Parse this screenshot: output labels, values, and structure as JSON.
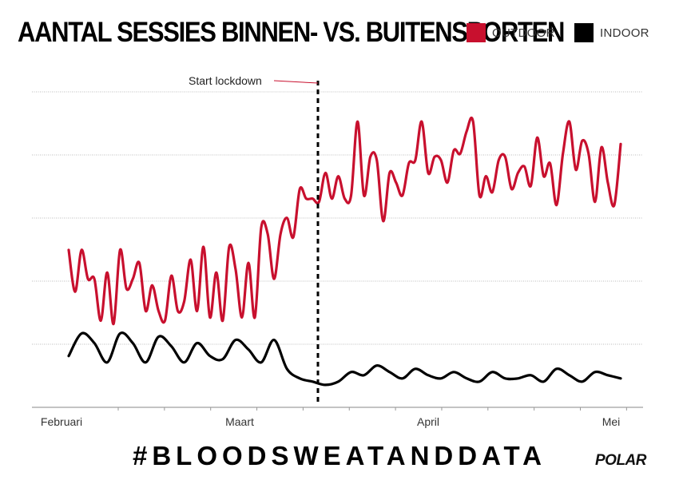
{
  "title": "AANTAL SESSIES BINNEN- VS. BUITENSPORTEN",
  "hashtag": "#BLOODSWEATANDDATA",
  "brand": "POLAR",
  "colors": {
    "outdoor": "#c8102e",
    "indoor": "#000000",
    "grid": "#bbbbbb"
  },
  "chart_data": {
    "type": "line",
    "grid": true,
    "legend_position": "top-right",
    "x_ticks": [
      "Februari",
      "Maart",
      "April",
      "Mei"
    ],
    "x_tick_days": [
      0,
      30,
      59,
      88
    ],
    "annotation": {
      "label": "Start lockdown",
      "day": 34
    },
    "y_scale": "relative (no values shown)",
    "series": [
      {
        "name": "OUTDOOR",
        "key": "outdoor",
        "x": [
          0,
          1,
          2,
          3,
          4,
          5,
          6,
          7,
          8,
          9,
          10,
          11,
          12,
          13,
          14,
          15,
          16,
          17,
          18,
          19,
          20,
          21,
          22,
          23,
          24,
          25,
          26,
          27,
          28,
          29,
          30,
          31,
          32,
          33,
          34,
          35,
          36,
          37,
          38,
          39,
          40,
          41,
          42,
          43,
          44,
          45,
          46,
          47,
          48,
          49,
          50,
          51,
          52,
          53,
          54,
          55,
          56,
          57,
          58,
          59,
          60,
          61,
          62,
          63,
          64,
          65,
          66,
          67,
          68,
          69,
          70,
          71,
          72,
          73,
          74,
          75,
          76,
          77,
          78,
          79,
          80,
          81,
          82,
          83,
          84,
          85,
          86
        ],
        "values": [
          4.9,
          3.6,
          4.9,
          4.0,
          4.0,
          2.7,
          4.2,
          2.6,
          4.9,
          3.7,
          4.0,
          4.5,
          3.0,
          3.8,
          3.0,
          2.7,
          4.1,
          3.0,
          3.3,
          4.6,
          3.0,
          5.0,
          2.8,
          4.2,
          2.7,
          5.0,
          4.3,
          2.8,
          4.5,
          2.8,
          5.6,
          5.4,
          4.0,
          5.4,
          5.9,
          5.3,
          6.8,
          6.5,
          6.5,
          6.4,
          7.3,
          6.5,
          7.2,
          6.5,
          6.6,
          8.9,
          6.6,
          7.8,
          7.7,
          5.8,
          7.3,
          7.0,
          6.6,
          7.6,
          7.7,
          8.9,
          7.3,
          7.8,
          7.7,
          7.0,
          8.0,
          7.9,
          8.6,
          8.9,
          6.6,
          7.2,
          6.7,
          7.7,
          7.8,
          6.8,
          7.3,
          7.5,
          6.9,
          8.4,
          7.2,
          7.6,
          6.3,
          7.9,
          8.9,
          7.4,
          8.3,
          7.9,
          6.4,
          8.1,
          7.0,
          6.3,
          8.2
        ],
        "note": "values are relative line heights; overall: ~3-5 before lockdown, ~5.5-9 after"
      },
      {
        "name": "INDOOR",
        "key": "indoor",
        "x": [
          0,
          2,
          4,
          6,
          8,
          10,
          12,
          14,
          16,
          18,
          20,
          22,
          24,
          26,
          28,
          30,
          32,
          34,
          36,
          38,
          40,
          42,
          44,
          46,
          48,
          50,
          52,
          54,
          56,
          58,
          60,
          62,
          64,
          66,
          68,
          70,
          72,
          74,
          76,
          78,
          80,
          82,
          84,
          86
        ],
        "values": [
          1.6,
          2.3,
          2.0,
          1.4,
          2.3,
          2.0,
          1.4,
          2.2,
          1.9,
          1.4,
          2.0,
          1.6,
          1.5,
          2.1,
          1.8,
          1.4,
          2.1,
          1.2,
          0.9,
          0.8,
          0.7,
          0.8,
          1.1,
          1.0,
          1.3,
          1.1,
          0.9,
          1.2,
          1.0,
          0.9,
          1.1,
          0.9,
          0.8,
          1.1,
          0.9,
          0.9,
          1.0,
          0.8,
          1.2,
          1.0,
          0.8,
          1.1,
          1.0,
          0.9
        ]
      }
    ]
  }
}
